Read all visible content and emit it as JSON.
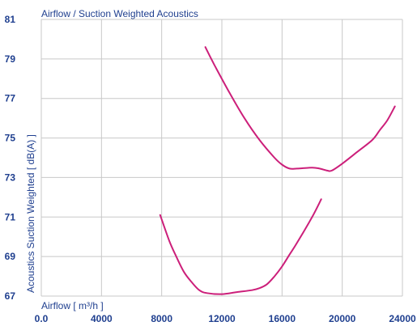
{
  "chart_data": {
    "type": "line",
    "title": "Airflow / Suction Weighted Acoustics",
    "xlabel": "Airflow [ m³/h ]",
    "ylabel": "Acoustics Suction Weighted [ dB(A) ]",
    "xlim": [
      0,
      24000
    ],
    "ylim": [
      67,
      81
    ],
    "x_ticks": [
      "0.0",
      "4000",
      "8000",
      "12000",
      "16000",
      "20000",
      "24000"
    ],
    "y_ticks": [
      "67",
      "69",
      "71",
      "73",
      "75",
      "77",
      "79",
      "81"
    ],
    "grid": true,
    "colors": {
      "series": "#cc1f7a",
      "grid": "#c8c8c8",
      "text": "#1f3f8f"
    },
    "series": [
      {
        "points": [
          [
            10900,
            79.6
          ],
          [
            11500,
            78.7
          ],
          [
            12500,
            77.3
          ],
          [
            13500,
            76.0
          ],
          [
            14500,
            74.9
          ],
          [
            15500,
            74.0
          ],
          [
            16000,
            73.65
          ],
          [
            16500,
            73.45
          ],
          [
            17000,
            73.45
          ],
          [
            18000,
            73.5
          ],
          [
            18500,
            73.45
          ],
          [
            19000,
            73.35
          ],
          [
            19300,
            73.35
          ],
          [
            20000,
            73.7
          ],
          [
            21000,
            74.3
          ],
          [
            22000,
            74.9
          ],
          [
            22500,
            75.4
          ],
          [
            23000,
            75.9
          ],
          [
            23500,
            76.6
          ]
        ]
      },
      {
        "points": [
          [
            7900,
            71.1
          ],
          [
            8500,
            69.8
          ],
          [
            9000,
            68.95
          ],
          [
            9500,
            68.2
          ],
          [
            10000,
            67.7
          ],
          [
            10500,
            67.3
          ],
          [
            11000,
            67.15
          ],
          [
            12000,
            67.1
          ],
          [
            13000,
            67.2
          ],
          [
            14000,
            67.3
          ],
          [
            14500,
            67.4
          ],
          [
            15000,
            67.6
          ],
          [
            15500,
            68.0
          ],
          [
            16000,
            68.5
          ],
          [
            16500,
            69.1
          ],
          [
            17000,
            69.7
          ],
          [
            18000,
            71.0
          ],
          [
            18600,
            71.9
          ]
        ]
      }
    ]
  }
}
